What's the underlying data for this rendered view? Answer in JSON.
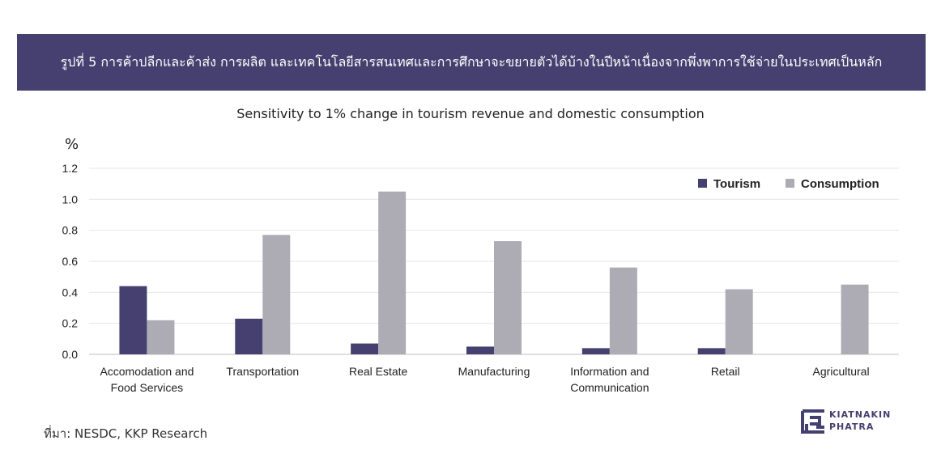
{
  "header": {
    "banner_title": "รูปที่ 5 การค้าปลีกและค้าส่ง การผลิต และเทคโนโลยีสารสนเทศและการศึกษาจะขยายตัวได้บ้างในปีหน้าเนื่องจากพึ่งพาการใช้จ่ายในประเทศเป็นหลัก"
  },
  "chart_data": {
    "type": "bar",
    "title": "Sensitivity to 1% change in tourism revenue and domestic consumption",
    "ylabel": "%",
    "xlabel": "",
    "ylim": [
      0,
      1.2
    ],
    "yticks": [
      "0.0",
      "0.2",
      "0.4",
      "0.6",
      "0.8",
      "1.0",
      "1.2"
    ],
    "grid": true,
    "legend_position": "top-right",
    "categories": [
      [
        "Accomodation and",
        "Food Services"
      ],
      [
        "Transportation"
      ],
      [
        "Real Estate"
      ],
      [
        "Manufacturing"
      ],
      [
        "Information and",
        "Communication"
      ],
      [
        "Retail"
      ],
      [
        "Agricultural"
      ]
    ],
    "series": [
      {
        "name": "Tourism",
        "color": "#464070",
        "values": [
          0.44,
          0.23,
          0.07,
          0.05,
          0.04,
          0.04,
          0.0
        ]
      },
      {
        "name": "Consumption",
        "color": "#adacb5",
        "values": [
          0.22,
          0.77,
          1.05,
          0.73,
          0.56,
          0.42,
          0.45
        ]
      }
    ]
  },
  "footer": {
    "source": "ที่มา: NESDC, KKP Research",
    "logo_line1": "KIATNAKIN",
    "logo_line2": "PHATRA"
  },
  "colors": {
    "banner": "#464070",
    "grid": "#e6e6e6",
    "axis": "#bfbfbf"
  }
}
